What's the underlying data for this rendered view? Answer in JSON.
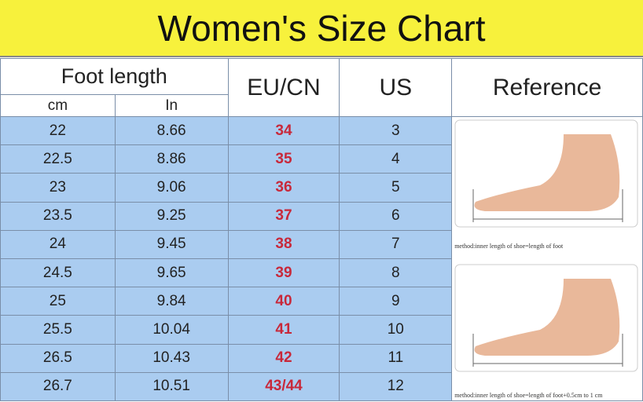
{
  "title": "Women's Size Chart",
  "headers": {
    "foot_length": "Foot length",
    "cm": "cm",
    "in": "In",
    "eu_cn": "EU/CN",
    "us": "US",
    "reference": "Reference"
  },
  "rows": [
    {
      "cm": "22",
      "in": "8.66",
      "eu": "34",
      "us": "3"
    },
    {
      "cm": "22.5",
      "in": "8.86",
      "eu": "35",
      "us": "4"
    },
    {
      "cm": "23",
      "in": "9.06",
      "eu": "36",
      "us": "5"
    },
    {
      "cm": "23.5",
      "in": "9.25",
      "eu": "37",
      "us": "6"
    },
    {
      "cm": "24",
      "in": "9.45",
      "eu": "38",
      "us": "7"
    },
    {
      "cm": "24.5",
      "in": "9.65",
      "eu": "39",
      "us": "8"
    },
    {
      "cm": "25",
      "in": "9.84",
      "eu": "40",
      "us": "9"
    },
    {
      "cm": "25.5",
      "in": "10.04",
      "eu": "41",
      "us": "10"
    },
    {
      "cm": "26.5",
      "in": "10.43",
      "eu": "42",
      "us": "11"
    },
    {
      "cm": "26.7",
      "in": "10.51",
      "eu": "43/44",
      "us": "12"
    }
  ],
  "reference": {
    "caption1": "method:inner length of shoe=length of foot",
    "caption2": "method:inner length of shoe=length of foot+0.5cm to 1 cm"
  },
  "colors": {
    "title_bg": "#f7f13c",
    "row_bg": "#aaccf0",
    "eu_text": "#c8283a"
  }
}
